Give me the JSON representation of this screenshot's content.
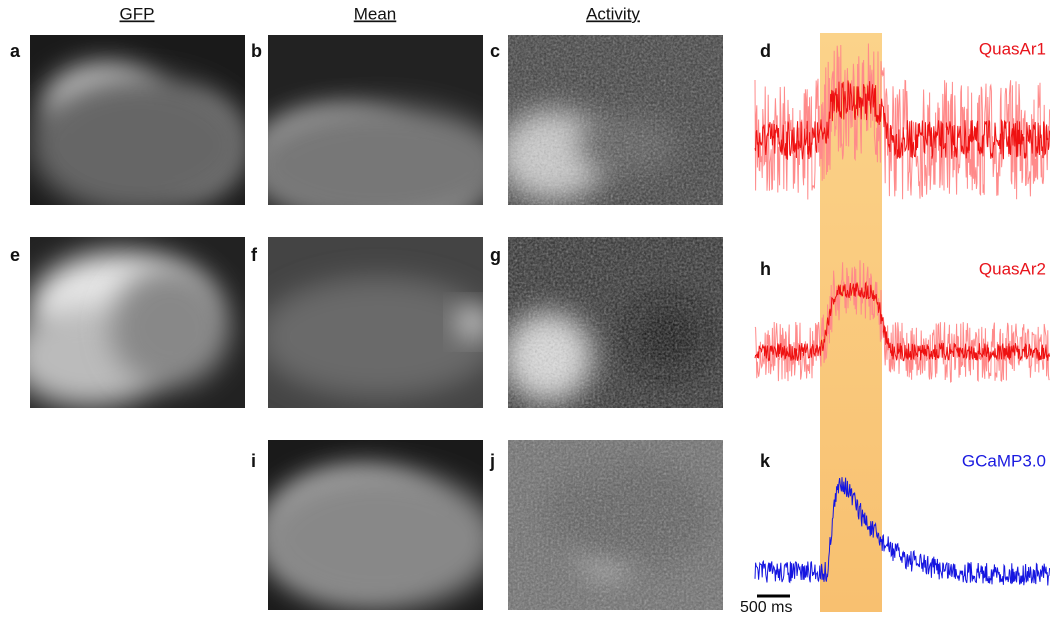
{
  "headers": [
    "GFP",
    "Mean",
    "Activity"
  ],
  "panel_labels": [
    "a",
    "b",
    "c",
    "d",
    "e",
    "f",
    "g",
    "h",
    "i",
    "j",
    "k"
  ],
  "trace_labels": [
    "QuasAr1",
    "QuasAr2",
    "GCaMP3.0"
  ],
  "scale_bar": "500 ms"
}
